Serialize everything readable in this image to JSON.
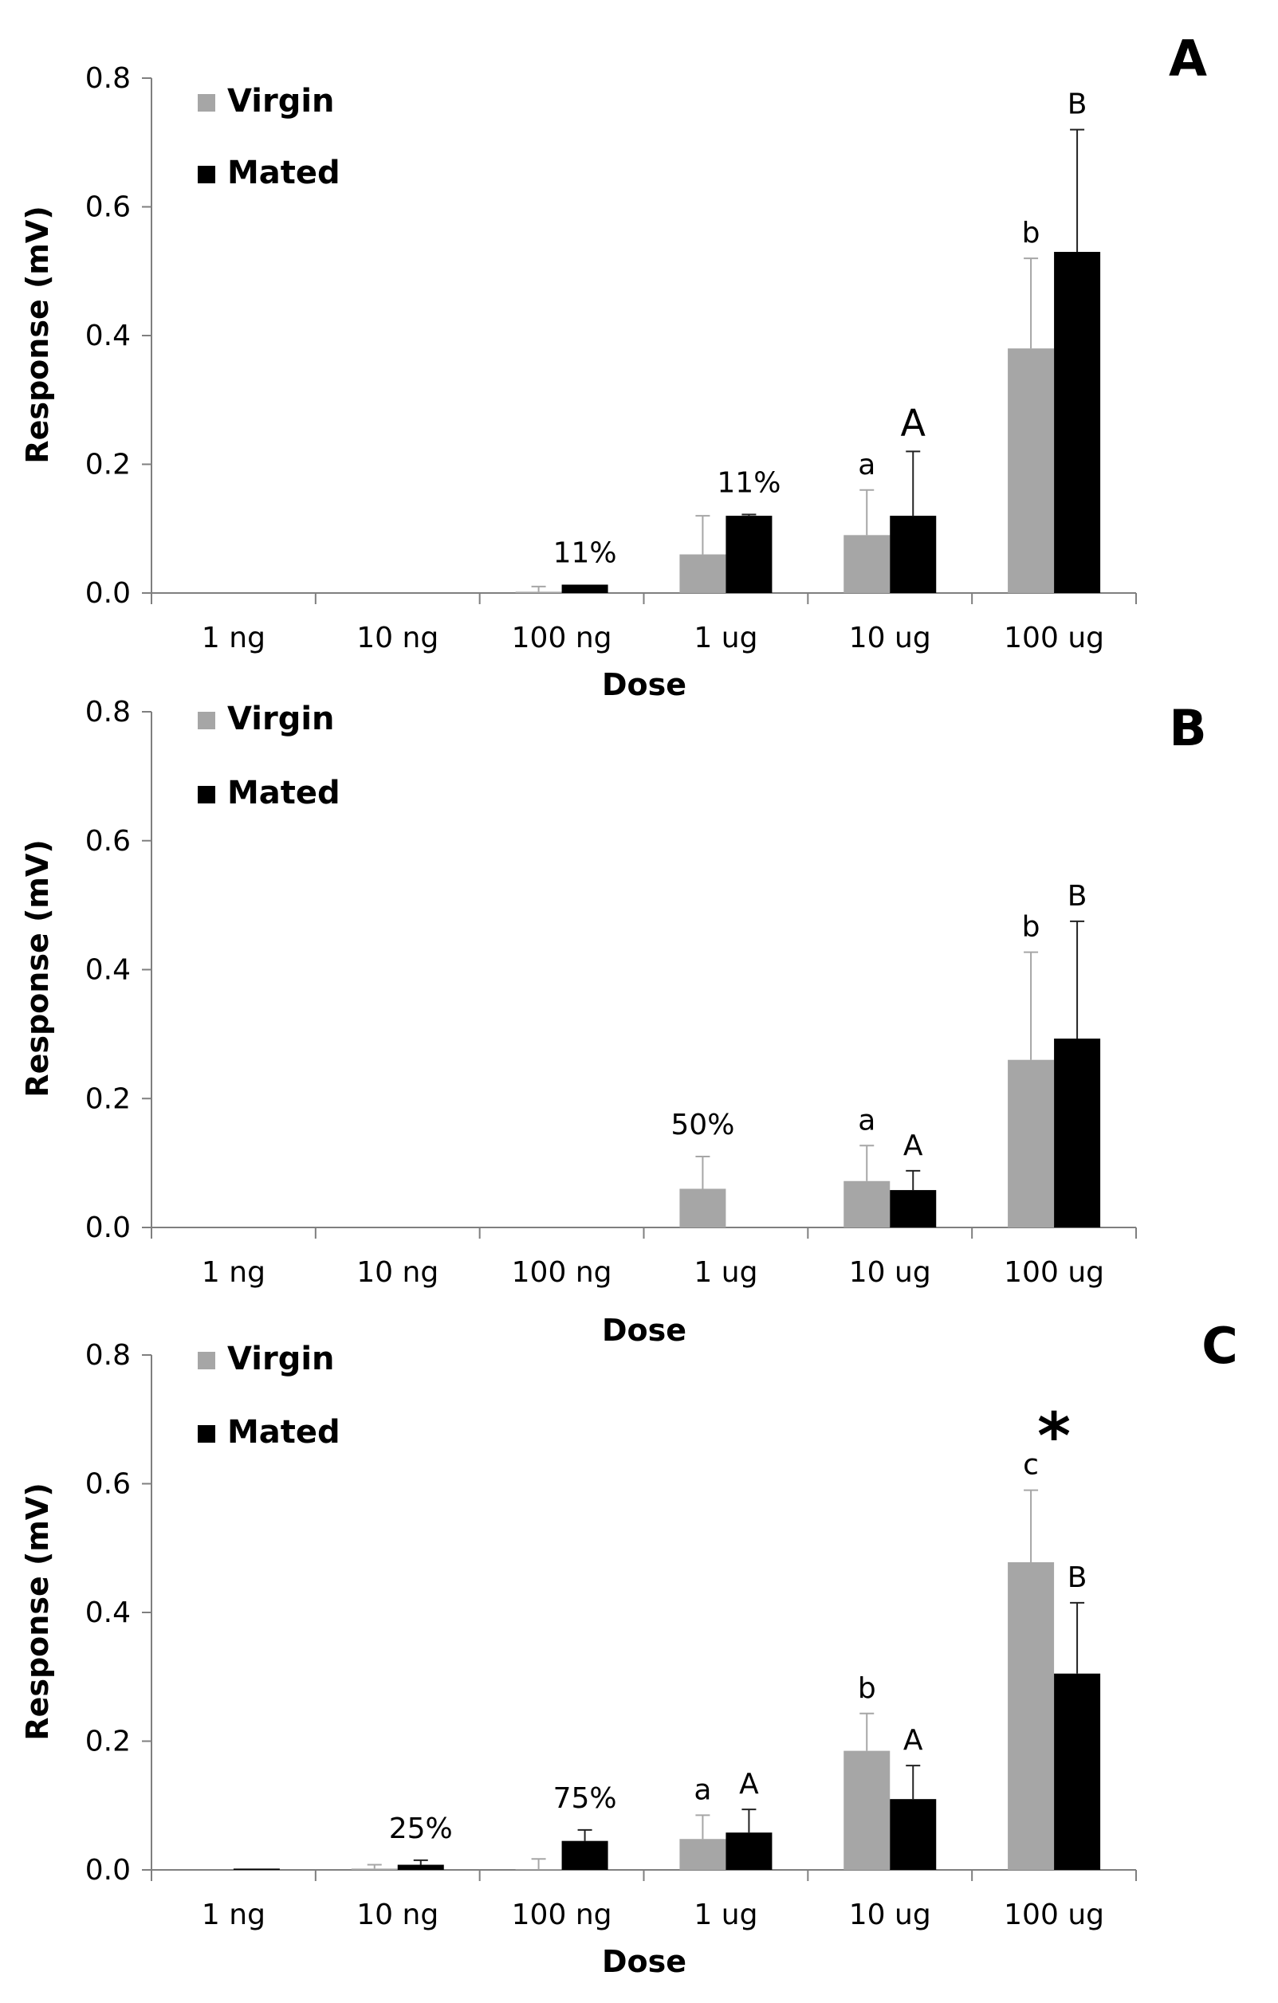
{
  "colors": {
    "virgin": "#a6a6a6",
    "mated": "#000000",
    "axis": "#7f7f7f"
  },
  "chart_data": [
    {
      "type": "bar",
      "panel_label": "A",
      "xlabel": "Dose",
      "ylabel": "Response (mV)",
      "ylim": [
        0,
        0.8
      ],
      "yticks": [
        "0.0",
        "0.2",
        "0.4",
        "0.6",
        "0.8"
      ],
      "categories": [
        "1 ng",
        "10 ng",
        "100 ng",
        "1 ug",
        "10 ug",
        "100 ug"
      ],
      "legend_position": "top-left",
      "grid": false,
      "series": [
        {
          "name": "Virgin",
          "values": [
            0,
            0,
            0.002,
            0.06,
            0.09,
            0.38
          ],
          "errors": [
            0,
            0,
            0.008,
            0.06,
            0.07,
            0.14
          ]
        },
        {
          "name": "Mated",
          "values": [
            0,
            0,
            0.013,
            0.12,
            0.12,
            0.53
          ],
          "errors": [
            0,
            0,
            0,
            0.002,
            0.1,
            0.19
          ]
        }
      ],
      "annotations": [
        {
          "text": "11%",
          "category": 2,
          "series": 1
        },
        {
          "text": "11%",
          "category": 3,
          "series": 1
        },
        {
          "text": "a",
          "category": 4,
          "series": 0
        },
        {
          "text": "A",
          "category": 4,
          "series": 1,
          "large": true
        },
        {
          "text": "b",
          "category": 5,
          "series": 0
        },
        {
          "text": "B",
          "category": 5,
          "series": 1
        }
      ]
    },
    {
      "type": "bar",
      "panel_label": "B",
      "xlabel": "Dose",
      "ylabel": "Response (mV)",
      "ylim": [
        0,
        0.8
      ],
      "yticks": [
        "0.0",
        "0.2",
        "0.4",
        "0.6",
        "0.8"
      ],
      "categories": [
        "1 ng",
        "10 ng",
        "100 ng",
        "1 ug",
        "10 ug",
        "100 ug"
      ],
      "legend_position": "top-left",
      "grid": false,
      "series": [
        {
          "name": "Virgin",
          "values": [
            0,
            0,
            0,
            0.06,
            0.072,
            0.26
          ],
          "errors": [
            0,
            0,
            0,
            0.05,
            0.055,
            0.167
          ]
        },
        {
          "name": "Mated",
          "values": [
            0,
            0,
            0,
            0,
            0.058,
            0.293
          ],
          "errors": [
            0,
            0,
            0,
            0,
            0.03,
            0.182
          ]
        }
      ],
      "annotations": [
        {
          "text": "50%",
          "category": 3,
          "series": 0
        },
        {
          "text": "a",
          "category": 4,
          "series": 0
        },
        {
          "text": "A",
          "category": 4,
          "series": 1
        },
        {
          "text": "b",
          "category": 5,
          "series": 0
        },
        {
          "text": "B",
          "category": 5,
          "series": 1
        }
      ]
    },
    {
      "type": "bar",
      "panel_label": "C",
      "xlabel": "Dose",
      "ylabel": "Response (mV)",
      "ylim": [
        0,
        0.8
      ],
      "yticks": [
        "0.0",
        "0.2",
        "0.4",
        "0.6",
        "0.8"
      ],
      "categories": [
        "1 ng",
        "10 ng",
        "100 ng",
        "1 ug",
        "10 ug",
        "100 ug"
      ],
      "legend_position": "top-left",
      "grid": false,
      "series": [
        {
          "name": "Virgin",
          "values": [
            0,
            0.002,
            0.001,
            0.048,
            0.185,
            0.478
          ],
          "errors": [
            0,
            0.006,
            0.016,
            0.037,
            0.058,
            0.112
          ]
        },
        {
          "name": "Mated",
          "values": [
            0.002,
            0.008,
            0.045,
            0.058,
            0.11,
            0.305
          ],
          "errors": [
            0,
            0.007,
            0.017,
            0.036,
            0.052,
            0.11
          ]
        }
      ],
      "annotations": [
        {
          "text": "25%",
          "category": 1,
          "series": 1
        },
        {
          "text": "75%",
          "category": 2,
          "series": 1
        },
        {
          "text": "a",
          "category": 3,
          "series": 0
        },
        {
          "text": "A",
          "category": 3,
          "series": 1
        },
        {
          "text": "b",
          "category": 4,
          "series": 0
        },
        {
          "text": "A",
          "category": 4,
          "series": 1
        },
        {
          "text": "c",
          "category": 5,
          "series": 0
        },
        {
          "text": "B",
          "category": 5,
          "series": 1
        },
        {
          "text": "*",
          "category": 5,
          "series": -1,
          "star": true
        }
      ]
    }
  ]
}
